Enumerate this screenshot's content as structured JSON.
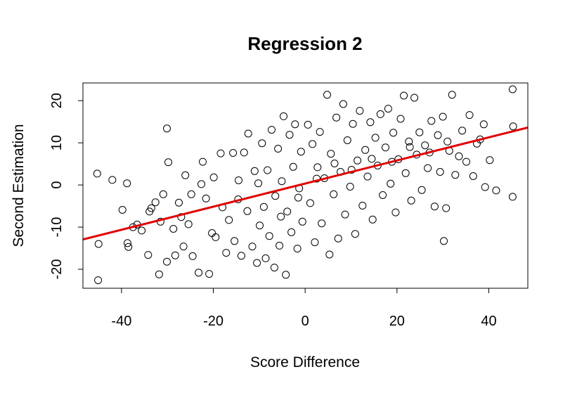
{
  "chart_data": {
    "type": "scatter",
    "title": "Regression 2",
    "xlabel": "Score Difference",
    "ylabel": "Second Estimation",
    "xlim": [
      -48.4,
      48.5
    ],
    "ylim": [
      -24.5,
      24.2
    ],
    "xticks": [
      -40,
      -20,
      0,
      20,
      40
    ],
    "yticks": [
      -20,
      -10,
      0,
      10,
      20
    ],
    "grid": false,
    "legend": "none",
    "point_style": "open-circle",
    "point_color": "#000000",
    "regression_line": {
      "color": "#e00000",
      "intercept": 0.33,
      "slope": 0.274
    },
    "points": [
      [
        -45.3,
        2.7
      ],
      [
        -45.0,
        -14.0
      ],
      [
        -45.1,
        -22.6
      ],
      [
        -42.0,
        1.2
      ],
      [
        -39.8,
        -5.9
      ],
      [
        -38.8,
        0.4
      ],
      [
        -38.5,
        -14.7
      ],
      [
        -38.7,
        -13.8
      ],
      [
        -37.5,
        -10.0
      ],
      [
        -36.6,
        -9.4
      ],
      [
        -35.6,
        -10.8
      ],
      [
        -34.2,
        -16.6
      ],
      [
        -33.5,
        -5.5
      ],
      [
        -32.6,
        -4.1
      ],
      [
        -31.5,
        -8.7
      ],
      [
        -31.8,
        -21.2
      ],
      [
        -30.1,
        -18.2
      ],
      [
        -30.1,
        13.4
      ],
      [
        -29.8,
        5.4
      ],
      [
        -28.7,
        -10.4
      ],
      [
        -28.3,
        -16.7
      ],
      [
        -27.5,
        -4.2
      ],
      [
        -26.5,
        -14.6
      ],
      [
        -26.1,
        2.3
      ],
      [
        -25.4,
        -9.3
      ],
      [
        -24.8,
        -2.2
      ],
      [
        -24.5,
        -16.9
      ],
      [
        -23.2,
        -20.8
      ],
      [
        -22.3,
        5.5
      ],
      [
        -21.6,
        -3.2
      ],
      [
        -20.9,
        -21.1
      ],
      [
        -20.3,
        -11.4
      ],
      [
        -19.9,
        1.8
      ],
      [
        -19.5,
        -12.4
      ],
      [
        -18.4,
        7.5
      ],
      [
        -17.2,
        -16.1
      ],
      [
        -16.6,
        -8.3
      ],
      [
        -15.7,
        7.6
      ],
      [
        -15.4,
        -13.3
      ],
      [
        -14.5,
        1.1
      ],
      [
        -13.9,
        -16.8
      ],
      [
        -13.3,
        7.7
      ],
      [
        -12.6,
        -6.2
      ],
      [
        -12.4,
        12.2
      ],
      [
        -11.5,
        -14.6
      ],
      [
        -11.0,
        3.3
      ],
      [
        -10.5,
        -18.5
      ],
      [
        -10.2,
        0.4
      ],
      [
        -9.9,
        -9.6
      ],
      [
        -9.4,
        9.9
      ],
      [
        -8.6,
        -17.4
      ],
      [
        -8.2,
        3.5
      ],
      [
        -7.8,
        -12.1
      ],
      [
        -7.3,
        13.1
      ],
      [
        -6.7,
        -19.6
      ],
      [
        -6.5,
        -2.6
      ],
      [
        -5.9,
        8.6
      ],
      [
        -5.6,
        -14.4
      ],
      [
        -5.1,
        0.9
      ],
      [
        -4.7,
        16.3
      ],
      [
        -4.2,
        -21.3
      ],
      [
        -3.9,
        -6.3
      ],
      [
        -3.4,
        11.9
      ],
      [
        -3.0,
        -11.2
      ],
      [
        -2.6,
        4.3
      ],
      [
        -2.2,
        14.4
      ],
      [
        -1.7,
        -15.1
      ],
      [
        -1.3,
        -0.8
      ],
      [
        -0.9,
        7.9
      ],
      [
        -0.6,
        -8.7
      ],
      [
        0.6,
        14.3
      ],
      [
        1.1,
        -4.3
      ],
      [
        1.6,
        9.7
      ],
      [
        2.1,
        -13.6
      ],
      [
        2.7,
        4.2
      ],
      [
        3.2,
        12.6
      ],
      [
        3.6,
        -9.1
      ],
      [
        4.2,
        1.6
      ],
      [
        4.8,
        21.4
      ],
      [
        5.3,
        -16.5
      ],
      [
        5.6,
        7.4
      ],
      [
        6.2,
        -2.2
      ],
      [
        6.8,
        16.0
      ],
      [
        7.2,
        -12.7
      ],
      [
        7.7,
        3.1
      ],
      [
        8.3,
        19.2
      ],
      [
        8.7,
        -7.0
      ],
      [
        9.2,
        10.6
      ],
      [
        9.8,
        -0.4
      ],
      [
        10.4,
        14.5
      ],
      [
        10.9,
        -11.6
      ],
      [
        11.4,
        5.8
      ],
      [
        11.9,
        17.6
      ],
      [
        12.5,
        -4.9
      ],
      [
        13.1,
        8.3
      ],
      [
        13.6,
        2.0
      ],
      [
        14.2,
        14.9
      ],
      [
        14.7,
        -8.2
      ],
      [
        15.3,
        11.2
      ],
      [
        15.8,
        4.6
      ],
      [
        16.4,
        16.8
      ],
      [
        16.9,
        -2.4
      ],
      [
        17.5,
        8.9
      ],
      [
        18.1,
        18.1
      ],
      [
        18.6,
        0.3
      ],
      [
        19.2,
        12.4
      ],
      [
        19.7,
        -6.5
      ],
      [
        20.3,
        6.1
      ],
      [
        20.8,
        15.7
      ],
      [
        21.5,
        21.2
      ],
      [
        21.9,
        2.8
      ],
      [
        22.6,
        10.3
      ],
      [
        23.1,
        -3.7
      ],
      [
        23.8,
        20.7
      ],
      [
        24.3,
        7.2
      ],
      [
        24.9,
        12.5
      ],
      [
        25.4,
        -1.2
      ],
      [
        26.1,
        9.4
      ],
      [
        26.7,
        4.0
      ],
      [
        27.5,
        15.2
      ],
      [
        28.2,
        -5.1
      ],
      [
        28.9,
        11.8
      ],
      [
        29.4,
        3.1
      ],
      [
        30.0,
        16.2
      ],
      [
        30.2,
        -13.3
      ],
      [
        30.7,
        -5.5
      ],
      [
        31.4,
        8.1
      ],
      [
        32.0,
        21.4
      ],
      [
        32.7,
        2.4
      ],
      [
        33.5,
        6.8
      ],
      [
        34.2,
        12.9
      ],
      [
        35.1,
        5.5
      ],
      [
        35.8,
        16.6
      ],
      [
        36.6,
        2.1
      ],
      [
        37.4,
        9.8
      ],
      [
        38.1,
        10.8
      ],
      [
        38.9,
        14.4
      ],
      [
        39.2,
        -0.5
      ],
      [
        40.2,
        5.9
      ],
      [
        41.6,
        -1.3
      ],
      [
        45.2,
        22.7
      ],
      [
        45.3,
        13.9
      ],
      [
        45.2,
        -2.8
      ],
      [
        -33.9,
        -6.3
      ],
      [
        -30.9,
        -2.2
      ],
      [
        -27.0,
        -7.6
      ],
      [
        -22.6,
        0.2
      ],
      [
        -18.0,
        -5.3
      ],
      [
        -14.6,
        -3.4
      ],
      [
        -9.0,
        -5.2
      ],
      [
        -5.3,
        -7.5
      ],
      [
        -1.5,
        -3.0
      ],
      [
        2.5,
        1.5
      ],
      [
        6.4,
        5.1
      ],
      [
        10.1,
        3.6
      ],
      [
        14.5,
        6.2
      ],
      [
        18.9,
        5.5
      ],
      [
        22.8,
        9.0
      ],
      [
        27.1,
        7.7
      ],
      [
        31.0,
        10.3
      ]
    ]
  }
}
